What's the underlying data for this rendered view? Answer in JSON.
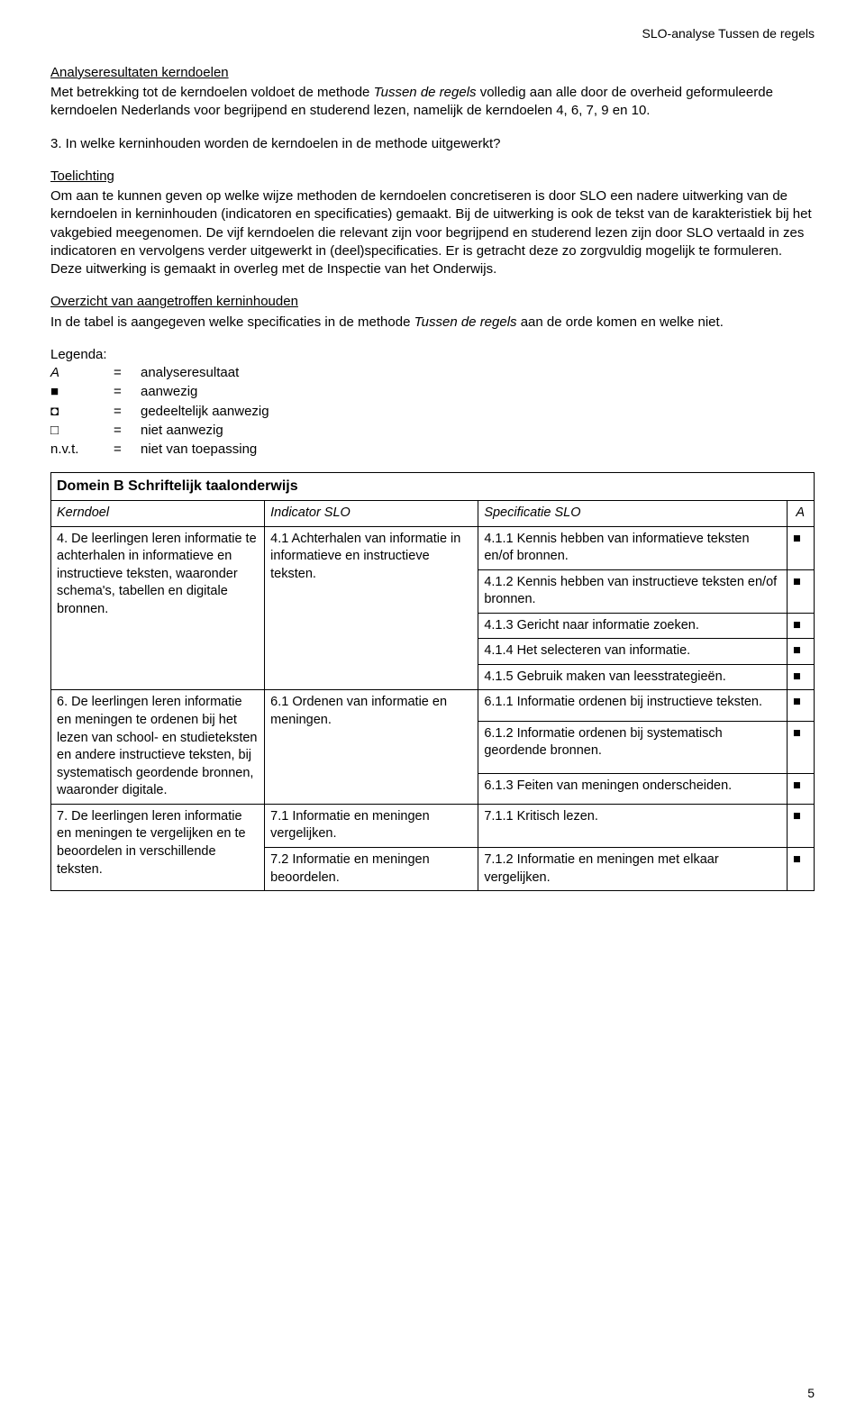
{
  "header_right": "SLO-analyse Tussen de regels",
  "section1": {
    "title": "Analyseresultaten kerndoelen",
    "text_pre": "Met betrekking tot de kerndoelen voldoet de methode ",
    "method_name": "Tussen de regels",
    "text_post": " volledig aan alle door de overheid geformuleerde kerndoelen Nederlands voor begrijpend en studerend lezen, namelijk de kerndoelen 4, 6, 7, 9 en 10."
  },
  "question3": "3. In welke kerninhouden worden de kerndoelen in de methode uitgewerkt?",
  "toelichting": {
    "title": "Toelichting",
    "text": "Om aan te kunnen geven op welke wijze methoden de kerndoelen concretiseren is door SLO een nadere uitwerking van de kerndoelen in kerninhouden (indicatoren en specificaties) gemaakt. Bij de uitwerking is ook de tekst van de karakteristiek bij het vakgebied meegenomen. De vijf kerndoelen die relevant zijn voor begrijpend en studerend lezen zijn door SLO vertaald in zes indicatoren en vervolgens verder uitgewerkt in (deel)specificaties. Er is getracht deze zo zorgvuldig mogelijk te formuleren. Deze uitwerking is gemaakt in overleg met de Inspectie van het Onderwijs."
  },
  "overzicht": {
    "title": "Overzicht van aangetroffen kerninhouden",
    "text_pre": "In de tabel is aangegeven welke specificaties in de methode ",
    "method_name": "Tussen de regels",
    "text_post": " aan de orde komen en welke niet."
  },
  "legend": {
    "title": "Legenda:",
    "rows": [
      {
        "sym": "A",
        "eq": "=",
        "val": "analyseresultaat"
      },
      {
        "sym": "■",
        "eq": "=",
        "val": "aanwezig"
      },
      {
        "sym": "◘",
        "eq": "=",
        "val": "gedeeltelijk aanwezig"
      },
      {
        "sym": "□",
        "eq": "=",
        "val": "niet aanwezig"
      },
      {
        "sym": "n.v.t.",
        "eq": "=",
        "val": "niet van toepassing"
      }
    ]
  },
  "table": {
    "domain_title": "Domein B Schriftelijk taalonderwijs",
    "cols": [
      "Kerndoel",
      "Indicator SLO",
      "Specificatie SLO",
      "A"
    ],
    "groups": [
      {
        "kerndoel": "4. De leerlingen leren informatie te achterhalen in informatieve en instructieve teksten, waaronder schema's, tabellen en digitale bronnen.",
        "indicator": "4.1 Achterhalen van informatie in informatieve en instructieve teksten.",
        "specs": [
          {
            "text": "4.1.1 Kennis hebben van informatieve teksten en/of bronnen.",
            "mark": "■"
          },
          {
            "text": "4.1.2 Kennis hebben van instructieve teksten en/of bronnen.",
            "mark": "■"
          },
          {
            "text": "4.1.3 Gericht naar informatie zoeken.",
            "mark": "■"
          },
          {
            "text": "4.1.4 Het selecteren van informatie.",
            "mark": "■"
          },
          {
            "text": "4.1.5 Gebruik maken van leesstrategieën.",
            "mark": "■"
          }
        ]
      },
      {
        "kerndoel": "6. De leerlingen leren informatie en meningen te ordenen bij het lezen van school- en studieteksten en andere instructieve teksten, bij systematisch geordende bronnen, waaronder digitale.",
        "indicator": "6.1 Ordenen van informatie en meningen.",
        "specs": [
          {
            "text": "6.1.1 Informatie ordenen bij instructieve teksten.",
            "mark": "■"
          },
          {
            "text": "6.1.2 Informatie ordenen bij systematisch geordende bronnen.",
            "mark": "■"
          },
          {
            "text": "6.1.3 Feiten van meningen onderscheiden.",
            "mark": "■"
          }
        ]
      },
      {
        "kerndoel": "7. De leerlingen leren informatie en meningen te vergelijken en te beoordelen in verschillende teksten.",
        "indicator": "7.1 Informatie en meningen vergelijken.",
        "specs": [
          {
            "text": "7.1.1 Kritisch lezen.",
            "mark": "■"
          }
        ]
      },
      {
        "kerndoel": "",
        "indicator": "7.2 Informatie en meningen beoordelen.",
        "specs": [
          {
            "text": "7.1.2 Informatie en meningen met elkaar vergelijken.",
            "mark": "■"
          }
        ]
      }
    ]
  },
  "page_number": "5"
}
